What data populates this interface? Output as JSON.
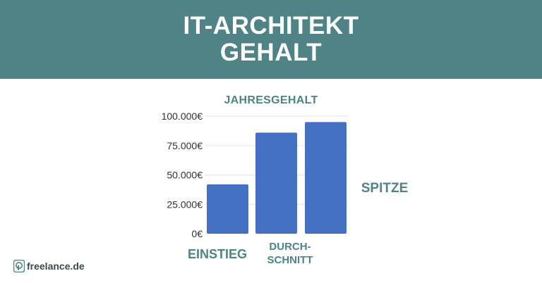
{
  "header": {
    "title_line1": "IT-ARCHITEKT",
    "title_line2": "GEHALT"
  },
  "logo": {
    "text": "freelance.de",
    "icon": "freelance-logo-icon"
  },
  "colors": {
    "banner": "#4f8385",
    "bar": "#4470c4",
    "label": "#4f8385",
    "axis_text": "#333333",
    "grid": "#e6e6e6"
  },
  "chart_data": {
    "type": "bar",
    "title": "JAHRESGEHALT",
    "categories": [
      "EINSTIEG",
      "DURCH-\nSCHNITT",
      "SPITZE"
    ],
    "values": [
      42000,
      86000,
      95000
    ],
    "ylim": [
      0,
      100000
    ],
    "yticks": [
      0,
      25000,
      50000,
      75000,
      100000
    ],
    "ytick_labels": [
      "0€",
      "25.000€",
      "50.000€",
      "75.000€",
      "100.000€"
    ],
    "grid": true,
    "legend": "none"
  }
}
